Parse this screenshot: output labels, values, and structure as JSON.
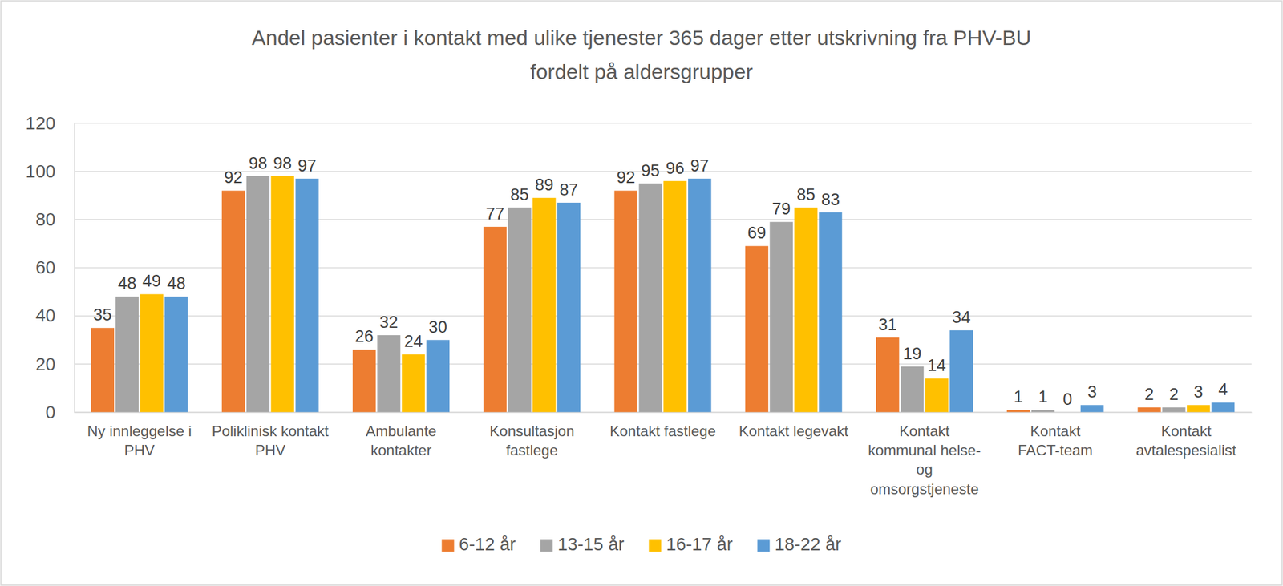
{
  "chart_data": {
    "type": "bar",
    "title": "Andel pasienter i kontakt med ulike tjenester 365 dager etter utskrivning fra PHV-BU\nfordelt på aldersgrupper",
    "categories": [
      "Ny innleggelse i PHV",
      "Poliklinisk kontakt PHV",
      "Ambulante kontakter",
      "Konsultasjon fastlege",
      "Kontakt fastlege",
      "Kontakt legevakt",
      "Kontakt kommunal helse- og omsorgstjeneste",
      "Kontakt FACT-team",
      "Kontakt avtalespesialist"
    ],
    "series": [
      {
        "name": "6-12 år",
        "color": "#ed7d31",
        "values": [
          35,
          92,
          26,
          77,
          92,
          69,
          31,
          1,
          2
        ]
      },
      {
        "name": "13-15 år",
        "color": "#a5a5a5",
        "values": [
          48,
          98,
          32,
          85,
          95,
          79,
          19,
          1,
          2
        ]
      },
      {
        "name": "16-17 år",
        "color": "#ffc000",
        "values": [
          49,
          98,
          24,
          89,
          96,
          85,
          14,
          0,
          3
        ]
      },
      {
        "name": "18-22 år",
        "color": "#5b9bd5",
        "values": [
          48,
          97,
          30,
          87,
          97,
          83,
          34,
          3,
          4
        ]
      }
    ],
    "ylim": [
      0,
      120
    ],
    "yticks": [
      0,
      20,
      40,
      60,
      80,
      100,
      120
    ],
    "grid": true,
    "data_labels": true,
    "legend": "bottom"
  }
}
